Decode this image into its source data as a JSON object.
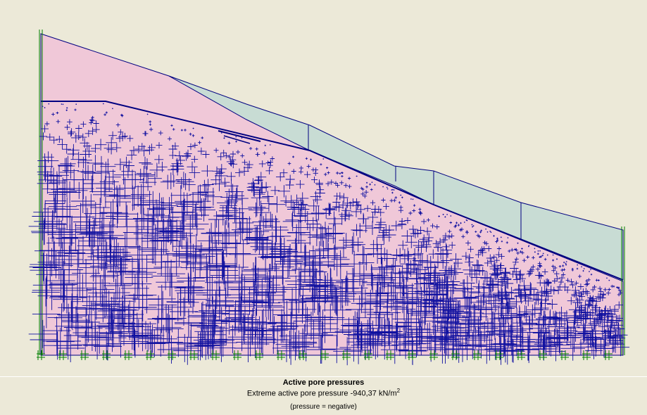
{
  "caption": {
    "title": "Active pore pressures",
    "extreme_label": "Extreme active pore pressure",
    "extreme_value": "-940,37",
    "unit": "kN/m",
    "unit_exp": "2",
    "note": "(pressure = negative)"
  },
  "colors": {
    "background": "#ece9d8",
    "soil_fill": "#f0c8d8",
    "cluster_fill": "#c8dcd4",
    "line": "#000080",
    "mesh_line": "#1010a0",
    "fixity": "#008000"
  }
}
